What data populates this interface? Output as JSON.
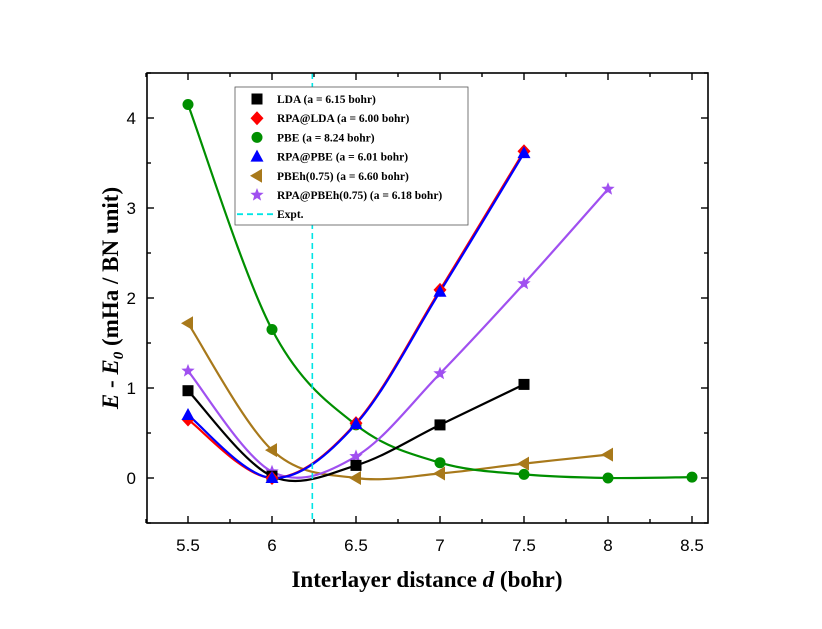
{
  "chart_data": {
    "type": "line",
    "title": "",
    "xlabel": "Interlayer distance d (bohr)",
    "ylabel": "E - E0 (mHa / BN unit)",
    "xlim": [
      5.22,
      8.58
    ],
    "ylim": [
      -0.5,
      4.5
    ],
    "xticks": [
      5.5,
      6,
      6.5,
      7,
      7.5,
      8,
      8.5
    ],
    "xtick_labels": [
      "5.5",
      "6",
      "6.5",
      "7",
      "7.5",
      "8",
      "8.5"
    ],
    "yticks": [
      0,
      1,
      2,
      3,
      4
    ],
    "ytick_labels": [
      "0",
      "1",
      "2",
      "3",
      "4"
    ],
    "grid": false,
    "legend_position": "upper-left-inside",
    "series": [
      {
        "name": "LDA (a = 6.15 bohr)",
        "color": "#000000",
        "marker": "square",
        "x": [
          5.5,
          6.0,
          6.5,
          7.0,
          7.5
        ],
        "y": [
          0.97,
          0.02,
          0.14,
          0.59,
          1.04
        ]
      },
      {
        "name": "RPA@LDA (a = 6.00 bohr)",
        "color": "#ff0000",
        "marker": "diamond",
        "x": [
          5.5,
          6.0,
          6.5,
          7.0,
          7.5
        ],
        "y": [
          0.65,
          0.0,
          0.61,
          2.09,
          3.63
        ]
      },
      {
        "name": "PBE (a = 8.24 bohr)",
        "color": "#008f00",
        "marker": "circle",
        "x": [
          5.5,
          6.0,
          6.5,
          7.0,
          7.5,
          8.0,
          8.5
        ],
        "y": [
          4.15,
          1.65,
          0.59,
          0.17,
          0.04,
          0.0,
          0.01
        ]
      },
      {
        "name": "RPA@PBE (a = 6.01 bohr)",
        "color": "#0000ff",
        "marker": "triangle-up",
        "x": [
          5.5,
          6.0,
          6.5,
          7.0,
          7.5
        ],
        "y": [
          0.7,
          0.0,
          0.6,
          2.07,
          3.61
        ]
      },
      {
        "name": "PBEh(0.75) (a = 6.60 bohr)",
        "color": "#a8791b",
        "marker": "triangle-left",
        "x": [
          5.5,
          6.0,
          6.5,
          7.0,
          7.5,
          8.0
        ],
        "y": [
          1.72,
          0.31,
          0.0,
          0.05,
          0.16,
          0.26
        ]
      },
      {
        "name": "RPA@PBEh(0.75) (a = 6.18 bohr)",
        "color": "#a050f0",
        "marker": "star",
        "x": [
          5.5,
          6.0,
          6.5,
          7.0,
          7.5,
          8.0
        ],
        "y": [
          1.19,
          0.07,
          0.24,
          1.16,
          2.16,
          3.21
        ]
      }
    ],
    "annotations": [
      {
        "type": "vline",
        "name": "Expt.",
        "x": 6.24,
        "color": "#00e5e5",
        "style": "dashed"
      }
    ]
  },
  "labels": {
    "ylabel_E": "E",
    "ylabel_dash": " - ",
    "ylabel_E0": "E",
    "ylabel_sub": "0",
    "ylabel_rest": " (mHa / BN unit)",
    "xlabel_main": "Interlayer distance ",
    "xlabel_italic": "d",
    "xlabel_rest": " (bohr)"
  },
  "legend": {
    "items": [
      "LDA (a = 6.15 bohr)",
      "RPA@LDA (a = 6.00 bohr)",
      "PBE (a = 8.24 bohr)",
      "RPA@PBE (a = 6.01 bohr)",
      "PBEh(0.75) (a = 6.60 bohr)",
      "RPA@PBEh(0.75) (a = 6.18 bohr)",
      "Expt."
    ]
  }
}
